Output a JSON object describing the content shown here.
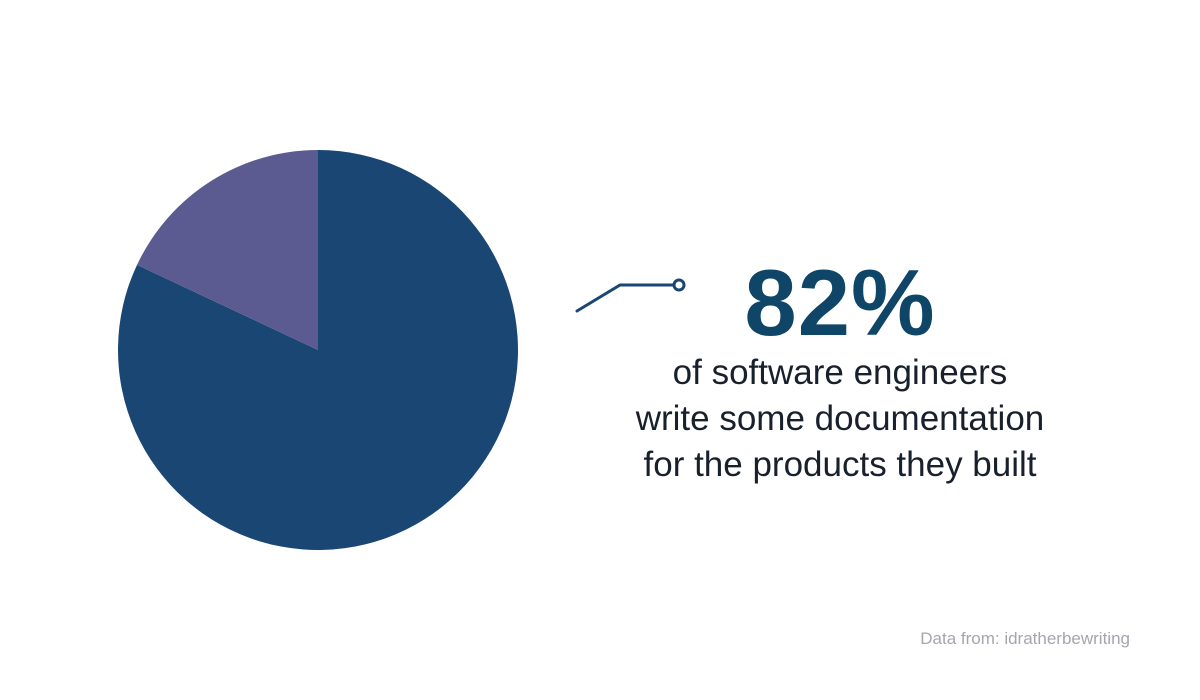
{
  "chart_data": {
    "type": "pie",
    "title": "",
    "slices": [
      {
        "label": "",
        "value": 82,
        "color": "#1a4674"
      },
      {
        "label": "",
        "value": 18,
        "color": "#5b5b91"
      }
    ],
    "start_angle_deg": 0,
    "direction": "clockwise",
    "legend": "none"
  },
  "callout": {
    "stat": "82%",
    "caption_lines": [
      "of software engineers",
      "write some documentation",
      "for the products they built"
    ],
    "stat_color": "#0f4566",
    "leader_color": "#1a4674"
  },
  "source": {
    "text": "Data from: idratherbewriting"
  }
}
